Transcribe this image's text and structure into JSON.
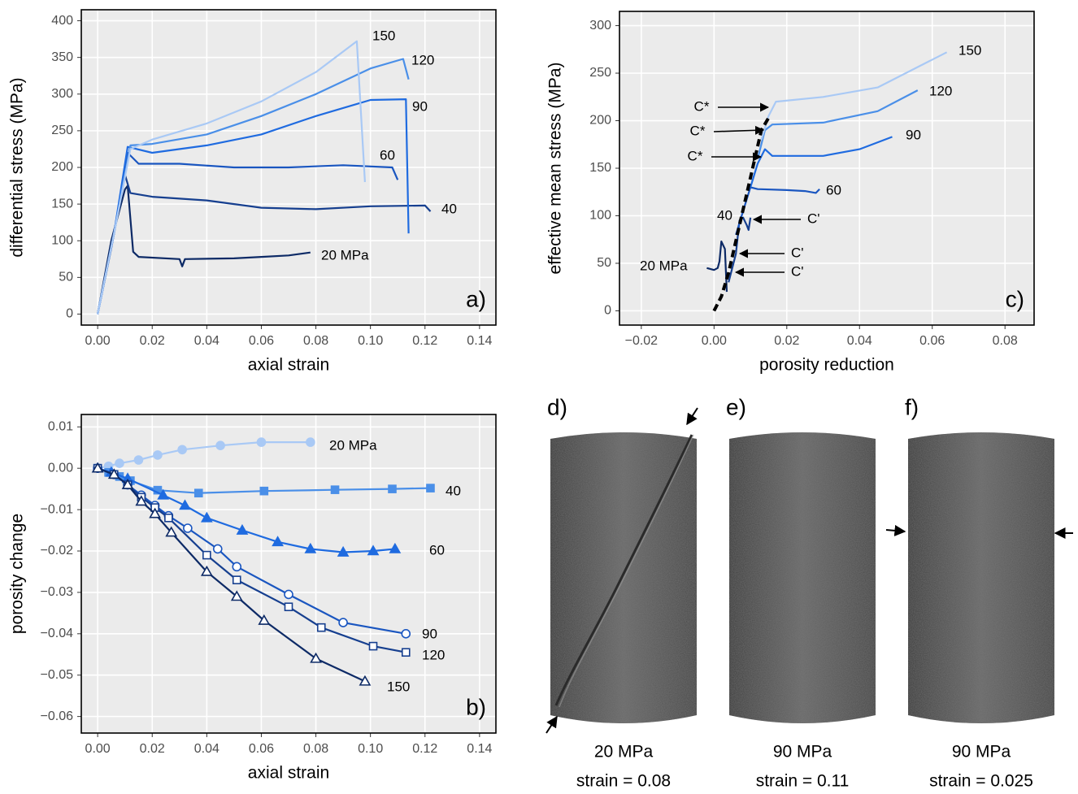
{
  "chart_data": [
    {
      "type": "line",
      "panel_label": "a)",
      "x_label": "axial strain",
      "y_label": "differential stress (MPa)",
      "xlim": [
        -0.006,
        0.146
      ],
      "ylim": [
        -15,
        415
      ],
      "grid": true,
      "xticks": [
        {
          "value": 0,
          "label": "0.00"
        },
        {
          "value": 0.02,
          "label": "0.02"
        },
        {
          "value": 0.04,
          "label": "0.04"
        },
        {
          "value": 0.06,
          "label": "0.06"
        },
        {
          "value": 0.08,
          "label": "0.08"
        },
        {
          "value": 0.1,
          "label": "0.10"
        },
        {
          "value": 0.12,
          "label": "0.12"
        },
        {
          "value": 0.14,
          "label": "0.14"
        }
      ],
      "yticks": [
        0,
        50,
        100,
        150,
        200,
        250,
        300,
        350,
        400
      ],
      "series": [
        {
          "name": "20 MPa",
          "color": "#0d2a66",
          "x": [
            0,
            0.005,
            0.01,
            0.011,
            0.013,
            0.015,
            0.03,
            0.031,
            0.032,
            0.05,
            0.06,
            0.07,
            0.078
          ],
          "values": [
            0,
            100,
            170,
            175,
            85,
            78,
            75,
            65,
            75,
            76,
            78,
            80,
            84
          ]
        },
        {
          "name": "40",
          "color": "#163f8f",
          "x": [
            0,
            0.005,
            0.01,
            0.012,
            0.02,
            0.04,
            0.05,
            0.06,
            0.08,
            0.1,
            0.12,
            0.122
          ],
          "values": [
            0,
            90,
            190,
            165,
            160,
            155,
            150,
            145,
            143,
            147,
            148,
            140
          ]
        },
        {
          "name": "60",
          "color": "#1a56c0",
          "x": [
            0,
            0.006,
            0.011,
            0.015,
            0.03,
            0.05,
            0.07,
            0.09,
            0.108,
            0.11
          ],
          "values": [
            0,
            110,
            220,
            205,
            205,
            200,
            200,
            203,
            200,
            183
          ]
        },
        {
          "name": "90",
          "color": "#1f6be0",
          "x": [
            0,
            0.006,
            0.011,
            0.02,
            0.04,
            0.06,
            0.08,
            0.1,
            0.113,
            0.114
          ],
          "values": [
            0,
            110,
            228,
            220,
            230,
            245,
            270,
            292,
            293,
            110
          ]
        },
        {
          "name": "120",
          "color": "#4a8fe8",
          "x": [
            0,
            0.006,
            0.012,
            0.02,
            0.04,
            0.06,
            0.08,
            0.1,
            0.112,
            0.114
          ],
          "values": [
            0,
            110,
            230,
            232,
            245,
            270,
            300,
            335,
            348,
            320
          ]
        },
        {
          "name": "150",
          "color": "#a9c9f5",
          "x": [
            0,
            0.006,
            0.012,
            0.02,
            0.04,
            0.06,
            0.08,
            0.095,
            0.098
          ],
          "values": [
            0,
            110,
            225,
            238,
            260,
            290,
            330,
            372,
            180
          ]
        }
      ]
    },
    {
      "type": "line",
      "panel_label": "b)",
      "x_label": "axial strain",
      "y_label": "porosity change",
      "xlim": [
        -0.006,
        0.146
      ],
      "ylim": [
        -0.064,
        0.013
      ],
      "grid": true,
      "xticks": [
        {
          "value": 0,
          "label": "0.00"
        },
        {
          "value": 0.02,
          "label": "0.02"
        },
        {
          "value": 0.04,
          "label": "0.04"
        },
        {
          "value": 0.06,
          "label": "0.06"
        },
        {
          "value": 0.08,
          "label": "0.08"
        },
        {
          "value": 0.1,
          "label": "0.10"
        },
        {
          "value": 0.12,
          "label": "0.12"
        },
        {
          "value": 0.14,
          "label": "0.14"
        }
      ],
      "yticks": [
        {
          "value": 0.01,
          "label": "0.01"
        },
        {
          "value": 0,
          "label": "0.00"
        },
        {
          "value": -0.01,
          "label": "−0.01"
        },
        {
          "value": -0.02,
          "label": "−0.02"
        },
        {
          "value": -0.03,
          "label": "−0.03"
        },
        {
          "value": -0.04,
          "label": "−0.04"
        },
        {
          "value": -0.05,
          "label": "−0.05"
        },
        {
          "value": -0.06,
          "label": "−0.06"
        }
      ],
      "series": [
        {
          "name": "20 MPa",
          "color": "#a9c9f5",
          "marker": "circle",
          "filled": true,
          "x": [
            0,
            0.004,
            0.008,
            0.015,
            0.022,
            0.031,
            0.045,
            0.06,
            0.078
          ],
          "values": [
            0,
            0.0005,
            0.0012,
            0.002,
            0.0032,
            0.0045,
            0.0055,
            0.0063,
            0.0063
          ]
        },
        {
          "name": "40",
          "color": "#4a8fe8",
          "marker": "square",
          "filled": true,
          "x": [
            0,
            0.004,
            0.008,
            0.012,
            0.022,
            0.037,
            0.061,
            0.087,
            0.108,
            0.122
          ],
          "values": [
            0,
            -0.001,
            -0.002,
            -0.003,
            -0.0053,
            -0.006,
            -0.0055,
            -0.0052,
            -0.005,
            -0.0048
          ]
        },
        {
          "name": "60",
          "color": "#1f6be0",
          "marker": "triangle",
          "filled": true,
          "x": [
            0,
            0.005,
            0.011,
            0.024,
            0.032,
            0.04,
            0.053,
            0.066,
            0.078,
            0.09,
            0.101,
            0.109
          ],
          "values": [
            0,
            -0.001,
            -0.0025,
            -0.0065,
            -0.009,
            -0.012,
            -0.015,
            -0.0178,
            -0.0195,
            -0.0203,
            -0.02,
            -0.0195
          ]
        },
        {
          "name": "90",
          "color": "#1a56c0",
          "marker": "circle",
          "filled": false,
          "x": [
            0,
            0.006,
            0.011,
            0.016,
            0.021,
            0.026,
            0.033,
            0.044,
            0.051,
            0.07,
            0.09,
            0.113
          ],
          "values": [
            0,
            -0.0015,
            -0.004,
            -0.0065,
            -0.009,
            -0.0115,
            -0.0145,
            -0.0195,
            -0.0238,
            -0.0305,
            -0.0373,
            -0.04
          ]
        },
        {
          "name": "120",
          "color": "#163f8f",
          "marker": "square",
          "filled": false,
          "x": [
            0,
            0.006,
            0.011,
            0.016,
            0.021,
            0.026,
            0.04,
            0.051,
            0.07,
            0.082,
            0.101,
            0.113
          ],
          "values": [
            0,
            -0.0015,
            -0.004,
            -0.007,
            -0.0095,
            -0.012,
            -0.021,
            -0.027,
            -0.0335,
            -0.0385,
            -0.043,
            -0.0445
          ]
        },
        {
          "name": "150",
          "color": "#0d2a66",
          "marker": "triangle",
          "filled": false,
          "x": [
            0,
            0.006,
            0.011,
            0.016,
            0.021,
            0.027,
            0.04,
            0.051,
            0.061,
            0.08,
            0.098
          ],
          "values": [
            0,
            -0.0015,
            -0.004,
            -0.008,
            -0.011,
            -0.0155,
            -0.025,
            -0.031,
            -0.0368,
            -0.046,
            -0.0515
          ]
        }
      ]
    },
    {
      "type": "line",
      "panel_label": "c)",
      "x_label": "porosity reduction",
      "y_label": "effective mean stress (MPa)",
      "xlim": [
        -0.026,
        0.088
      ],
      "ylim": [
        -15,
        315
      ],
      "grid": true,
      "xticks": [
        {
          "value": -0.02,
          "label": "−0.02"
        },
        {
          "value": 0,
          "label": "0.00"
        },
        {
          "value": 0.02,
          "label": "0.02"
        },
        {
          "value": 0.04,
          "label": "0.04"
        },
        {
          "value": 0.06,
          "label": "0.06"
        },
        {
          "value": 0.08,
          "label": "0.08"
        }
      ],
      "yticks": [
        0,
        50,
        100,
        150,
        200,
        250,
        300
      ],
      "annotations": [
        "C*",
        "C*",
        "C*",
        "C'",
        "C'",
        "C'"
      ],
      "series": [
        {
          "name": "20 MPa",
          "color": "#0d2a66",
          "x": [
            -0.002,
            0,
            0.001,
            0.0015,
            0.002,
            0.003,
            0.0035
          ],
          "values": [
            45,
            43,
            45,
            52,
            73,
            65,
            20
          ]
        },
        {
          "name": "40",
          "color": "#163f8f",
          "x": [
            0.004,
            0.006,
            0.007,
            0.008,
            0.009,
            0.0095,
            0.01
          ],
          "values": [
            30,
            60,
            95,
            98,
            90,
            85,
            98
          ]
        },
        {
          "name": "60",
          "color": "#1a56c0",
          "x": [
            0.006,
            0.008,
            0.01,
            0.012,
            0.02,
            0.025,
            0.028,
            0.029
          ],
          "values": [
            80,
            105,
            130,
            128,
            127,
            126,
            124,
            128
          ]
        },
        {
          "name": "90",
          "color": "#1f6be0",
          "x": [
            0.01,
            0.012,
            0.014,
            0.016,
            0.03,
            0.04,
            0.049
          ],
          "values": [
            130,
            155,
            170,
            163,
            163,
            170,
            183
          ]
        },
        {
          "name": "120",
          "color": "#4a8fe8",
          "x": [
            0.012,
            0.014,
            0.016,
            0.03,
            0.045,
            0.056
          ],
          "values": [
            160,
            190,
            196,
            198,
            210,
            232
          ]
        },
        {
          "name": "150",
          "color": "#a9c9f5",
          "x": [
            0.013,
            0.015,
            0.017,
            0.03,
            0.045,
            0.064
          ],
          "values": [
            180,
            205,
            220,
            225,
            235,
            272
          ]
        },
        {
          "color": "#000000",
          "dash": true,
          "x": [
            0,
            0.002,
            0.004,
            0.007,
            0.01,
            0.013,
            0.015
          ],
          "values": [
            0,
            15,
            40,
            90,
            140,
            190,
            203
          ]
        }
      ]
    }
  ],
  "photos": [
    {
      "label": "d)",
      "caption": "20 MPa",
      "note": "strain = 0.08"
    },
    {
      "label": "e)",
      "caption": "90 MPa",
      "note": "strain = 0.11"
    },
    {
      "label": "f)",
      "caption": "90 MPa",
      "note": "strain = 0.025"
    }
  ]
}
